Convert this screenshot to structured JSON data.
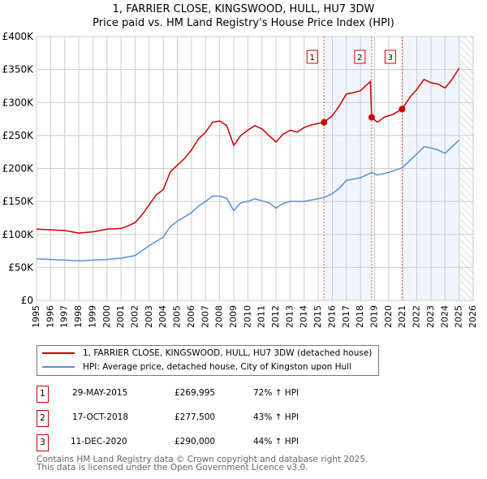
{
  "chart_data": {
    "type": "line",
    "title": "1, FARRIER CLOSE, KINGSWOOD, HULL, HU7 3DW",
    "subtitle": "Price paid vs. HM Land Registry's House Price Index (HPI)",
    "xlim": [
      1995,
      2026
    ],
    "ylim": [
      0,
      400000
    ],
    "x_ticks": [
      "1995",
      "1996",
      "1997",
      "1998",
      "1999",
      "2000",
      "2001",
      "2002",
      "2003",
      "2004",
      "2005",
      "2006",
      "2007",
      "2008",
      "2009",
      "2010",
      "2011",
      "2012",
      "2013",
      "2014",
      "2015",
      "2016",
      "2017",
      "2018",
      "2019",
      "2020",
      "2021",
      "2022",
      "2023",
      "2024",
      "2025",
      "2026"
    ],
    "y_ticks": [
      {
        "v": 0,
        "l": "£0"
      },
      {
        "v": 50000,
        "l": "£50K"
      },
      {
        "v": 100000,
        "l": "£100K"
      },
      {
        "v": 150000,
        "l": "£150K"
      },
      {
        "v": 200000,
        "l": "£200K"
      },
      {
        "v": 250000,
        "l": "£250K"
      },
      {
        "v": 300000,
        "l": "£300K"
      },
      {
        "v": 350000,
        "l": "£350K"
      },
      {
        "v": 400000,
        "l": "£400K"
      }
    ],
    "grid": true,
    "series": [
      {
        "name": "1, FARRIER CLOSE, KINGSWOOD, HULL, HU7 3DW (detached house)",
        "color": "#cc0000",
        "x": [
          1995,
          1996,
          1997,
          1998,
          1999,
          2000,
          2001,
          2001.5,
          2002,
          2002.5,
          2003,
          2003.5,
          2004,
          2004.5,
          2005,
          2005.5,
          2006,
          2006.5,
          2007,
          2007.5,
          2008,
          2008.5,
          2009,
          2009.5,
          2010,
          2010.5,
          2011,
          2011.5,
          2012,
          2012.5,
          2013,
          2013.5,
          2014,
          2014.5,
          2015.41,
          2016,
          2016.5,
          2017,
          2017.5,
          2018,
          2018.7,
          2018.79,
          2019.2,
          2019.7,
          2020.3,
          2020.95,
          2021.5,
          2022,
          2022.5,
          2023,
          2023.5,
          2024,
          2024.5,
          2025
        ],
        "y": [
          108,
          107,
          106,
          102,
          104,
          108,
          109,
          113,
          118,
          130,
          145,
          160,
          168,
          195,
          205,
          215,
          228,
          245,
          255,
          270,
          272,
          265,
          235,
          250,
          258,
          265,
          260,
          250,
          240,
          252,
          258,
          255,
          262,
          266,
          270,
          280,
          295,
          313,
          315,
          318,
          332,
          277.5,
          270,
          278,
          282,
          290,
          308,
          320,
          335,
          330,
          328,
          322,
          335,
          352
        ]
      },
      {
        "name": "HPI: Average price, detached house, City of Kingston upon Hull",
        "color": "#5b8fd4",
        "x": [
          1995,
          1998,
          2000,
          2001,
          2002,
          2003,
          2004,
          2004.5,
          2005,
          2006,
          2006.5,
          2007,
          2007.5,
          2008,
          2008.5,
          2009,
          2009.5,
          2010,
          2010.5,
          2011,
          2011.5,
          2012,
          2012.5,
          2013,
          2014,
          2015.41,
          2016,
          2016.5,
          2017,
          2018,
          2018.79,
          2019.2,
          2020,
          2020.95,
          2021.5,
          2022,
          2022.5,
          2023,
          2023.5,
          2024,
          2024.5,
          2025
        ],
        "y": [
          63,
          60,
          62,
          64,
          68,
          83,
          96,
          112,
          120,
          133,
          143,
          150,
          158,
          158,
          155,
          136,
          148,
          150,
          154,
          151,
          148,
          140,
          147,
          150,
          150,
          156,
          162,
          170,
          182,
          186,
          194,
          190,
          194,
          201,
          212,
          222,
          233,
          231,
          228,
          223,
          233,
          243
        ]
      }
    ],
    "y_unit": "thousands GBP",
    "sales": [
      {
        "n": "1",
        "x": 2015.41,
        "y": 269.995
      },
      {
        "n": "2",
        "x": 2018.79,
        "y": 277.5
      },
      {
        "n": "3",
        "x": 2020.95,
        "y": 290
      }
    ],
    "shaded": [
      [
        2015.41,
        2018.79
      ],
      [
        2020.95,
        2025.1
      ]
    ],
    "forecast_start": 2025.1
  },
  "legend": {
    "red": "1, FARRIER CLOSE, KINGSWOOD, HULL, HU7 3DW (detached house)",
    "blue": "HPI: Average price, detached house, City of Kingston upon Hull"
  },
  "transactions": [
    {
      "num": "1",
      "date": "29-MAY-2015",
      "price": "£269,995",
      "hpi": "72% ↑ HPI"
    },
    {
      "num": "2",
      "date": "17-OCT-2018",
      "price": "£277,500",
      "hpi": "43% ↑ HPI"
    },
    {
      "num": "3",
      "date": "11-DEC-2020",
      "price": "£290,000",
      "hpi": "44% ↑ HPI"
    }
  ],
  "footer": {
    "line1": "Contains HM Land Registry data © Crown copyright and database right 2025.",
    "line2": "This data is licensed under the Open Government Licence v3.0."
  }
}
